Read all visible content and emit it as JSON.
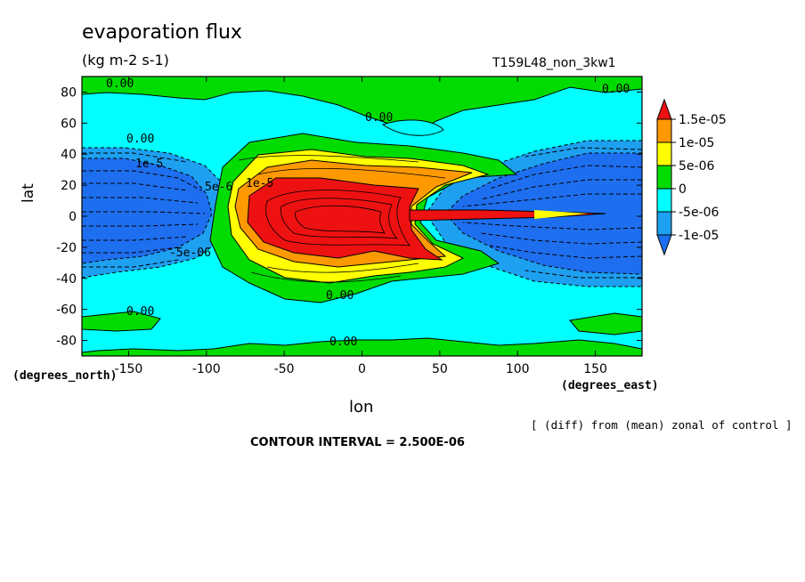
{
  "chart_data": {
    "type": "heatmap",
    "title": "evaporation flux",
    "subtitle": "(kg m-2 s-1)",
    "run_label": "T159L48_non_3kw1",
    "xlabel": "lon",
    "ylabel": "lat",
    "x_units": "(degrees_east)",
    "y_units": "(degrees_north)",
    "xlim": [
      -180,
      180
    ],
    "ylim": [
      -90,
      90
    ],
    "x_ticks": [
      "-150",
      "-100",
      "-50",
      "0",
      "50",
      "100",
      "150"
    ],
    "x_tick_values": [
      -150,
      -100,
      -50,
      0,
      50,
      100,
      150
    ],
    "y_ticks": [
      "80",
      "60",
      "40",
      "20",
      "0",
      "-20",
      "-40",
      "-60",
      "-80"
    ],
    "y_tick_values": [
      80,
      60,
      40,
      20,
      0,
      -20,
      -40,
      -60,
      -80
    ],
    "colorbar": {
      "labels": [
        "1.5e-05",
        "1e-05",
        "5e-06",
        "0",
        "-5e-06",
        "-1e-05"
      ],
      "levels": [
        -1e-05,
        -5e-06,
        0,
        5e-06,
        1e-05,
        1.5e-05
      ],
      "colors": [
        "#1e6fef",
        "#1ea0f0",
        "#00ffff",
        "#00dc00",
        "#ffff00",
        "#ff9900",
        "#ee1111"
      ]
    },
    "contour_labels": [
      "0.00",
      "0.00",
      "0.00",
      "0.00",
      "0.00",
      "0.00",
      "0.00",
      "-5e-06",
      "1e-5",
      "1e-5",
      "5e-6"
    ],
    "note": "[ (diff) from (mean) zonal of control ]",
    "contour_interval": "CONTOUR INTERVAL = 2.500E-06"
  }
}
